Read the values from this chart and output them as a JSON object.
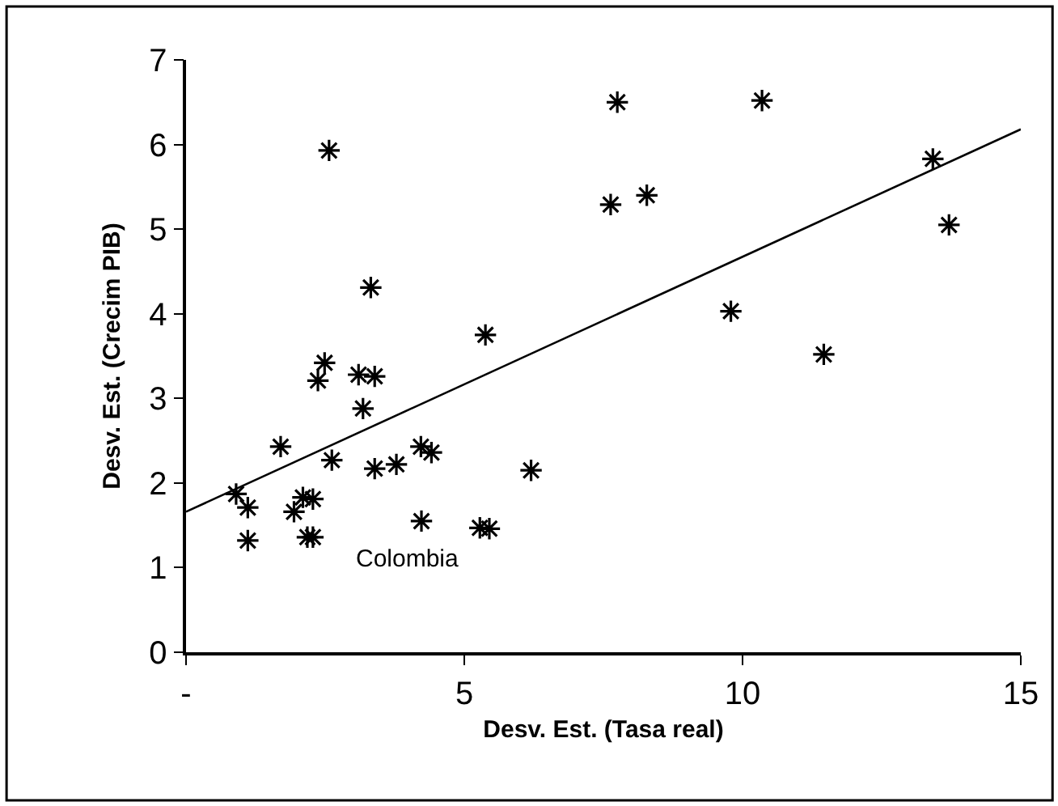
{
  "chart_data": {
    "type": "scatter",
    "xlabel": "Desv. Est. (Tasa real)",
    "ylabel": "Desv. Est. (Crecim PIB)",
    "series": [
      {
        "marker": "cross",
        "color": "#000000",
        "x": [
          0.9,
          1.11,
          1.11,
          1.7,
          1.94,
          2.1,
          2.28,
          2.18,
          2.28,
          2.37,
          2.49,
          2.57,
          2.62,
          3.1,
          3.18,
          3.39,
          3.32,
          3.39,
          3.78,
          4.22,
          4.41,
          4.23,
          5.28,
          5.45,
          5.38,
          6.2,
          7.75,
          7.63,
          8.28,
          10.35,
          9.79,
          11.46,
          13.42,
          13.71
        ],
        "values": [
          1.87,
          1.71,
          1.32,
          2.43,
          1.66,
          1.83,
          1.81,
          1.36,
          1.36,
          3.21,
          3.42,
          5.93,
          2.27,
          3.28,
          2.88,
          3.26,
          4.31,
          2.17,
          2.22,
          2.43,
          2.36,
          1.55,
          1.47,
          1.46,
          3.75,
          2.15,
          6.5,
          5.29,
          5.4,
          6.52,
          4.03,
          3.52,
          5.83,
          5.05
        ]
      },
      {
        "type": "line",
        "color": "#000000",
        "x": [
          0,
          15
        ],
        "values": [
          1.66,
          6.18
        ]
      }
    ],
    "xlim": [
      0,
      15
    ],
    "xticks": [
      {
        "value": 0,
        "label": "-"
      },
      5,
      10,
      15
    ],
    "ylim": [
      0,
      7
    ],
    "yticks": [
      0,
      1,
      2,
      3,
      4,
      5,
      6,
      7
    ],
    "annotations": [
      "Colombia"
    ]
  }
}
